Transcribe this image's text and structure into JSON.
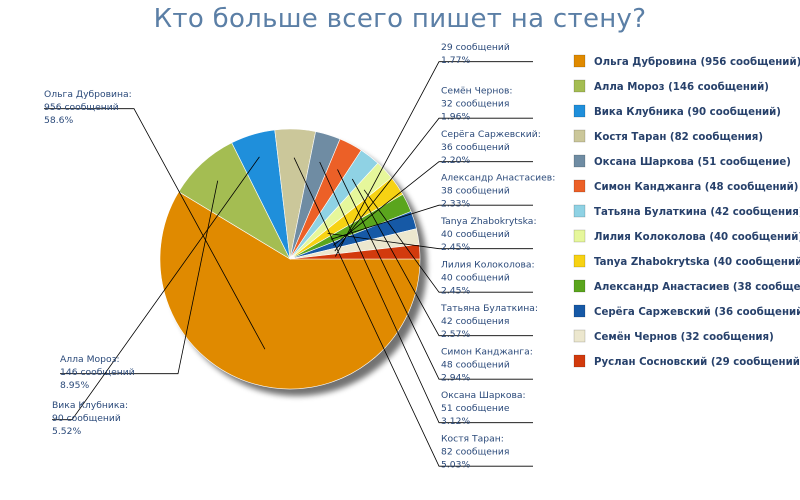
{
  "chart_data": {
    "type": "pie",
    "title": "Кто больше всего пишет на стену?",
    "slices": [
      {
        "name": "Ольга Дубровина",
        "legend": "Ольга Дубровина (956 сообщений)",
        "callout": [
          "Ольга Дубровина:",
          "956 сообщений",
          "58.6%"
        ],
        "value": 956,
        "percent": 58.6,
        "color": "#e08a00"
      },
      {
        "name": "Алла Мороз",
        "legend": "Алла Мороз (146 сообщений)",
        "callout": [
          "Алла Мороз:",
          "146 сообщений",
          "8.95%"
        ],
        "value": 146,
        "percent": 8.95,
        "color": "#a4bd52"
      },
      {
        "name": "Вика Клубника",
        "legend": "Вика Клубника (90 сообщений)",
        "callout": [
          "Вика Клубника:",
          "90 сообщений",
          "5.52%"
        ],
        "value": 90,
        "percent": 5.52,
        "color": "#1f8fdb"
      },
      {
        "name": "Костя Таран",
        "legend": "Костя Таран (82 сообщения)",
        "callout": [
          "Костя Таран:",
          "82 сообщения",
          "5.03%"
        ],
        "value": 82,
        "percent": 5.03,
        "color": "#cbc79a"
      },
      {
        "name": "Оксана Шаркова",
        "legend": "Оксана Шаркова (51 сообщение)",
        "callout": [
          "Оксана Шаркова:",
          "51 сообщение",
          "3.12%"
        ],
        "value": 51,
        "percent": 3.12,
        "color": "#6f8ca3"
      },
      {
        "name": "Симон Канджанга",
        "legend": "Симон Канджанга (48 сообщений)",
        "callout": [
          "Симон Канджанга:",
          "48 сообщений",
          "2.94%"
        ],
        "value": 48,
        "percent": 2.94,
        "color": "#ec6027"
      },
      {
        "name": "Татьяна Булаткина",
        "legend": "Татьяна Булаткина (42 сообщения)",
        "callout": [
          "Татьяна Булаткина:",
          "42 сообщения",
          "2.57%"
        ],
        "value": 42,
        "percent": 2.57,
        "color": "#8fd2e4"
      },
      {
        "name": "Лилия Колоколова",
        "legend": "Лилия Колоколова (40 сообщений)",
        "callout": [
          "Лилия Колоколова:",
          "40 сообщений",
          "2.45%"
        ],
        "value": 40,
        "percent": 2.45,
        "color": "#e6f79b"
      },
      {
        "name": "Tanya Zhabokrytska",
        "legend": "Tanya Zhabokrytska (40 сообщений)",
        "callout": [
          "Tanya Zhabokrytska:",
          "40 сообщений",
          "2.45%"
        ],
        "value": 40,
        "percent": 2.45,
        "color": "#f7d213"
      },
      {
        "name": "Александр Анастасиев",
        "legend": "Александр Анастасиев (38 сообщений)",
        "callout": [
          "Александр Анастасиев:",
          "38 сообщений",
          "2.33%"
        ],
        "value": 38,
        "percent": 2.33,
        "color": "#5aa51d"
      },
      {
        "name": "Серёга Саржевский",
        "legend": "Серёга Саржевский (36 сообщений)",
        "callout": [
          "Серёга Саржевский:",
          "36 сообщений",
          "2.20%"
        ],
        "value": 36,
        "percent": 2.2,
        "color": "#1659a6"
      },
      {
        "name": "Семён Чернов",
        "legend": "Семён Чернов (32 сообщения)",
        "callout": [
          "Семён Чернов:",
          "32 сообщения",
          "1.96%"
        ],
        "value": 32,
        "percent": 1.96,
        "color": "#ece7ce"
      },
      {
        "name": "Руслан Сосновский",
        "legend": "Руслан Сосновский (29 сообщений)",
        "callout": [
          "29 сообщений",
          "1.77%"
        ],
        "value": 29,
        "percent": 1.77,
        "color": "#d23a0d"
      }
    ]
  }
}
